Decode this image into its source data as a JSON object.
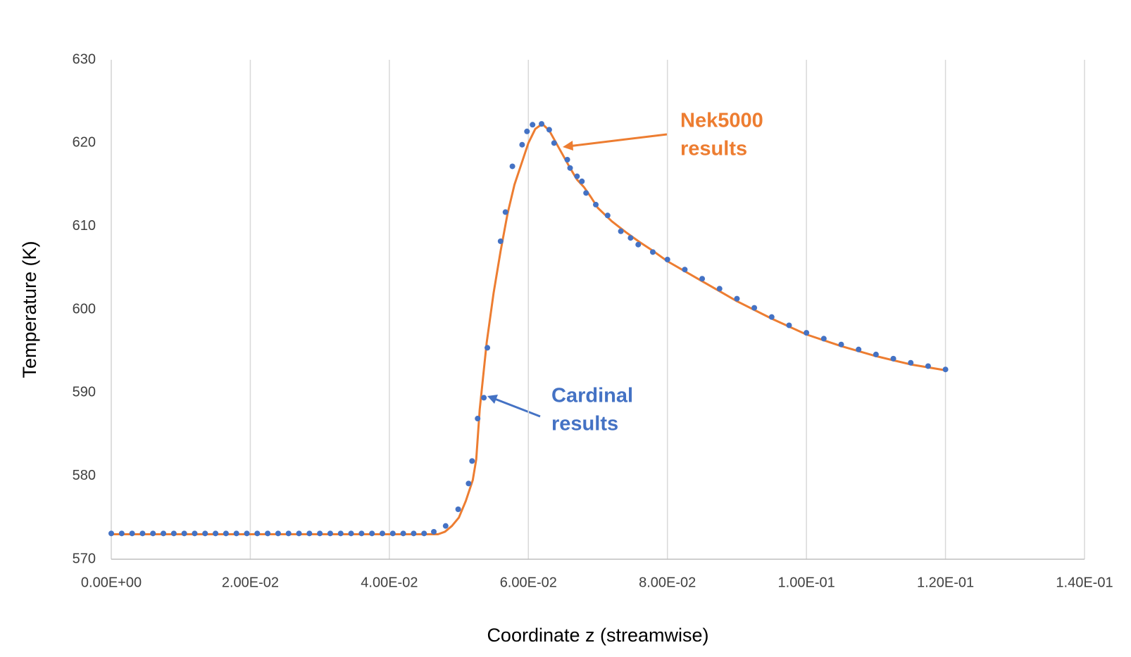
{
  "chart_data": {
    "type": "scatter",
    "x_label": "Coordinate z (streamwise)",
    "y_label": "Temperature (K)",
    "xlim": [
      0,
      0.14
    ],
    "xticks": [
      {
        "value": 0,
        "label": "0.00E+00"
      },
      {
        "value": 0.02,
        "label": "2.00E-02"
      },
      {
        "value": 0.04,
        "label": "4.00E-02"
      },
      {
        "value": 0.06,
        "label": "6.00E-02"
      },
      {
        "value": 0.08,
        "label": "8.00E-02"
      },
      {
        "value": 0.1,
        "label": "1.00E-01"
      },
      {
        "value": 0.12,
        "label": "1.20E-01"
      },
      {
        "value": 0.14,
        "label": "1.40E-01"
      }
    ],
    "ylim": [
      570,
      630
    ],
    "yticks": [
      570,
      580,
      590,
      600,
      610,
      620,
      630
    ],
    "grid": "x",
    "annotations": [
      {
        "lines": [
          "Nek5000",
          "results"
        ],
        "color": "#ed7d31"
      },
      {
        "lines": [
          "Cardinal",
          "results"
        ],
        "color": "#4472c4"
      }
    ],
    "series": [
      {
        "style": "markers",
        "color": "#4472c4",
        "x": [
          0,
          0.0015,
          0.003,
          0.0045,
          0.006,
          0.0075,
          0.009,
          0.0105,
          0.012,
          0.0135,
          0.015,
          0.0165,
          0.018,
          0.0195,
          0.021,
          0.0225,
          0.024,
          0.0255,
          0.027,
          0.0285,
          0.03,
          0.0315,
          0.033,
          0.0345,
          0.036,
          0.0375,
          0.039,
          0.0405,
          0.042,
          0.0435,
          0.045,
          0.0464,
          0.0481,
          0.0499,
          0.0514,
          0.0519,
          0.0527,
          0.0536,
          0.0541,
          0.056,
          0.0567,
          0.0577,
          0.0591,
          0.0598,
          0.0606,
          0.0619,
          0.063,
          0.0637,
          0.0656,
          0.066,
          0.067,
          0.0677,
          0.0683,
          0.0697,
          0.0714,
          0.0733,
          0.0747,
          0.0758,
          0.0779,
          0.08,
          0.0825,
          0.085,
          0.0875,
          0.09,
          0.0925,
          0.095,
          0.0975,
          0.1,
          0.1025,
          0.105,
          0.1075,
          0.11,
          0.1125,
          0.115,
          0.1175,
          0.12
        ],
        "values": [
          573.1,
          573.1,
          573.1,
          573.1,
          573.1,
          573.1,
          573.1,
          573.1,
          573.1,
          573.1,
          573.1,
          573.1,
          573.1,
          573.1,
          573.1,
          573.1,
          573.1,
          573.1,
          573.1,
          573.1,
          573.1,
          573.1,
          573.1,
          573.1,
          573.1,
          573.1,
          573.1,
          573.1,
          573.1,
          573.1,
          573.1,
          573.3,
          574,
          576,
          579.1,
          581.8,
          586.9,
          589.4,
          595.4,
          608.2,
          611.7,
          617.2,
          619.8,
          621.4,
          622.2,
          622.3,
          621.6,
          620,
          618,
          617,
          616,
          615.4,
          614,
          612.6,
          611.3,
          609.4,
          608.6,
          607.8,
          606.9,
          606,
          604.8,
          603.7,
          602.5,
          601.3,
          600.2,
          599.1,
          598.1,
          597.2,
          596.5,
          595.8,
          595.2,
          594.6,
          594.1,
          593.6,
          593.2,
          592.8
        ]
      },
      {
        "style": "line",
        "color": "#ed7d31",
        "x": [
          0,
          0.047,
          0.048,
          0.049,
          0.05,
          0.051,
          0.052,
          0.0525,
          0.053,
          0.054,
          0.055,
          0.056,
          0.057,
          0.058,
          0.059,
          0.06,
          0.061,
          0.062,
          0.063,
          0.064,
          0.065,
          0.066,
          0.067,
          0.068,
          0.069,
          0.07,
          0.072,
          0.074,
          0.076,
          0.078,
          0.08,
          0.085,
          0.09,
          0.095,
          0.1,
          0.105,
          0.11,
          0.115,
          0.12
        ],
        "values": [
          573,
          573,
          573.3,
          574,
          575,
          577,
          579.5,
          582,
          588,
          596,
          602,
          607,
          611.5,
          615,
          617.5,
          620,
          621.7,
          622.3,
          621.5,
          620,
          618.5,
          617,
          615.6,
          614.7,
          613.5,
          612.2,
          610.6,
          609.3,
          608.1,
          607,
          605.8,
          603.4,
          601,
          598.9,
          597,
          595.6,
          594.4,
          593.4,
          592.7
        ]
      }
    ]
  }
}
